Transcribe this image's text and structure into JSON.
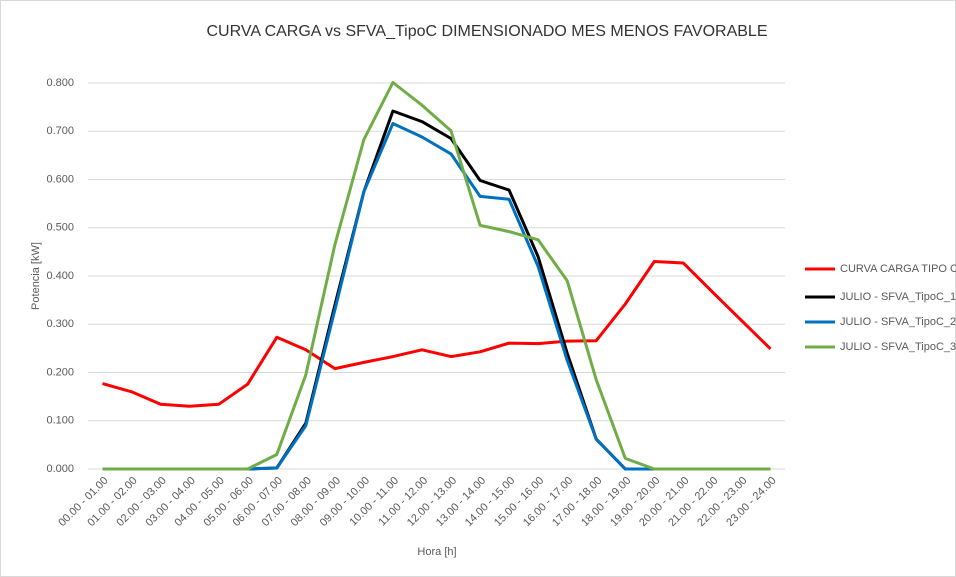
{
  "chart_data": {
    "type": "line",
    "title": "CURVA CARGA vs SFVA_TipoC DIMENSIONADO MES MENOS FAVORABLE",
    "xlabel": "Hora [h]",
    "ylabel": "Potencia [kW]",
    "categories": [
      "00.00 - 01.00",
      "01.00 - 02.00",
      "02.00 - 03.00",
      "03.00 - 04.00",
      "04.00 - 05.00",
      "05.00 - 06.00",
      "06.00 - 07.00",
      "07.00 - 08.00",
      "08.00 - 09.00",
      "09.00 - 10.00",
      "10.00 - 11.00",
      "11.00 - 12.00",
      "12.00 - 13.00",
      "13.00 - 14.00",
      "14.00 - 15.00",
      "15.00 - 16.00",
      "16.00 - 17.00",
      "17.00 - 18.00",
      "18.00 - 19.00",
      "19.00 - 20.00",
      "20.00 - 21.00",
      "21.00 - 22.00",
      "22.00 - 23.00",
      "23.00 - 24.00"
    ],
    "series": [
      {
        "name": "CURVA CARGA TIPO C",
        "color": "#ff0000",
        "values": [
          0.177,
          0.16,
          0.134,
          0.13,
          0.134,
          0.176,
          0.273,
          0.247,
          0.208,
          0.221,
          0.233,
          0.247,
          0.233,
          0.243,
          0.261,
          0.26,
          0.265,
          0.266,
          0.342,
          0.43,
          0.427,
          0.367,
          0.308,
          0.249
        ]
      },
      {
        "name": "JULIO - SFVA_TipoC_1",
        "color": "#000000",
        "values": [
          0,
          0,
          0,
          0,
          0,
          0,
          0.002,
          0.095,
          0.34,
          0.575,
          0.742,
          0.72,
          0.685,
          0.598,
          0.578,
          0.44,
          0.24,
          0.062,
          0,
          0,
          0,
          0,
          0,
          0
        ]
      },
      {
        "name": "JULIO - SFVA_TipoC_2",
        "color": "#0070c0",
        "values": [
          0,
          0,
          0,
          0,
          0,
          0,
          0.002,
          0.09,
          0.33,
          0.575,
          0.716,
          0.688,
          0.653,
          0.565,
          0.559,
          0.42,
          0.225,
          0.062,
          0,
          0,
          0,
          0,
          0,
          0
        ]
      },
      {
        "name": "JULIO - SFVA_TipoC_3",
        "color": "#70ad47",
        "values": [
          0,
          0,
          0,
          0,
          0,
          0,
          0.03,
          0.195,
          0.465,
          0.683,
          0.801,
          0.754,
          0.701,
          0.505,
          0.492,
          0.475,
          0.39,
          0.185,
          0.022,
          0,
          0,
          0,
          0,
          0
        ]
      }
    ],
    "ylim": [
      0,
      0.8
    ],
    "yticks": [
      {
        "value": 0,
        "label": "0.000"
      },
      {
        "value": 0.1,
        "label": "0.100"
      },
      {
        "value": 0.2,
        "label": "0.200"
      },
      {
        "value": 0.3,
        "label": "0.300"
      },
      {
        "value": 0.4,
        "label": "0.400"
      },
      {
        "value": 0.5,
        "label": "0.500"
      },
      {
        "value": 0.6,
        "label": "0.600"
      },
      {
        "value": 0.7,
        "label": "0.700"
      },
      {
        "value": 0.8,
        "label": "0.800"
      }
    ],
    "grid": true,
    "legend": "right"
  }
}
